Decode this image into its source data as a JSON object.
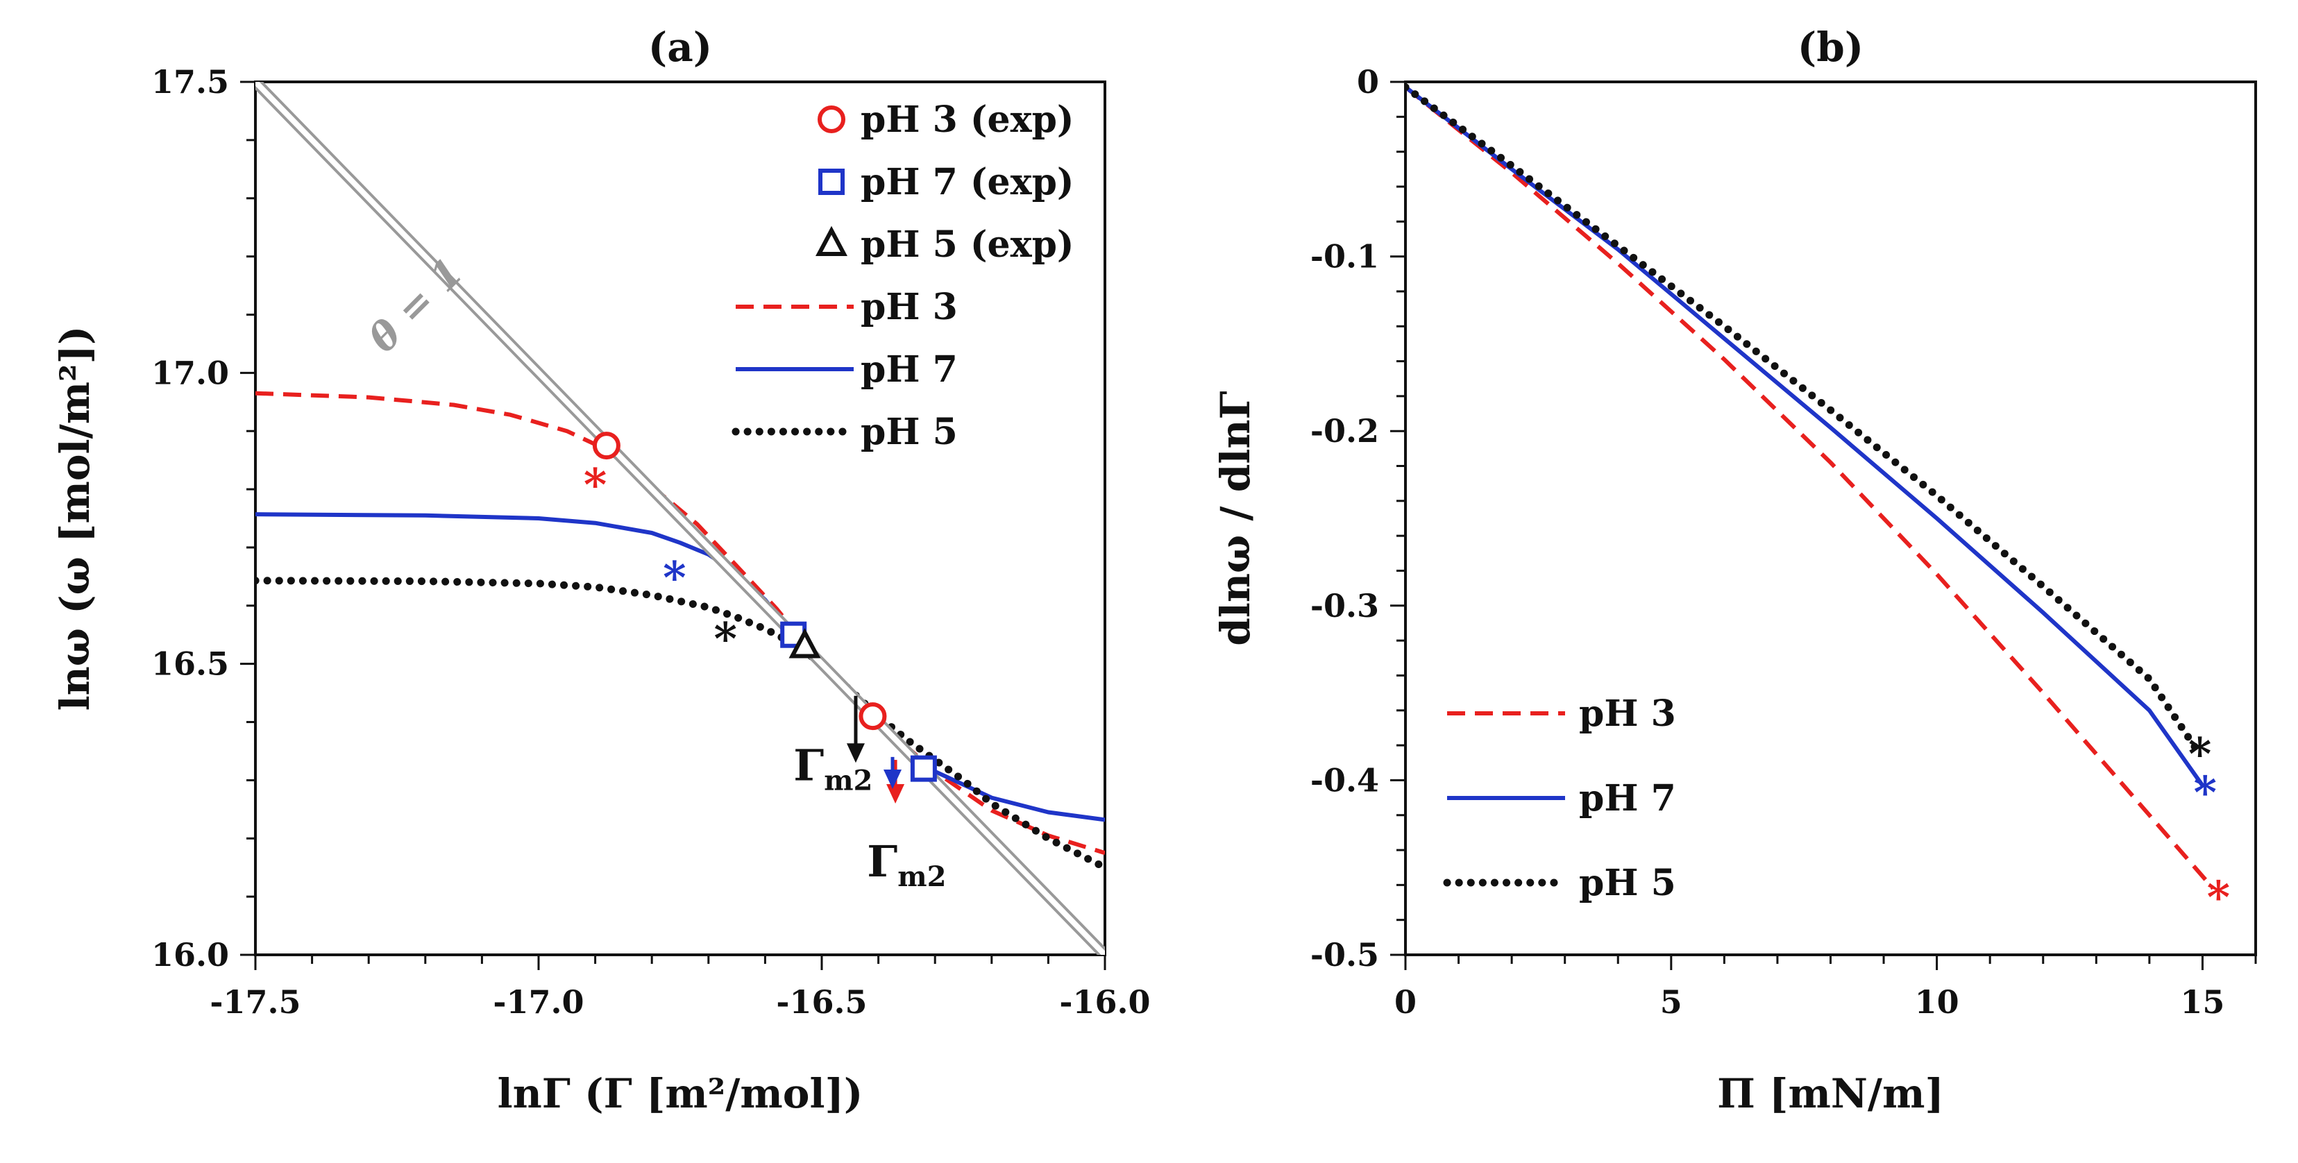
{
  "colors": {
    "pH3": "#e8201e",
    "pH7": "#1f35c8",
    "pH5": "#111111",
    "theta": "#999999",
    "axis": "#111111"
  },
  "chart_data": [
    {
      "id": "a",
      "type": "line",
      "title": "(a)",
      "xlabel": "lnΓ (Γ [m²/mol])",
      "ylabel": "lnω (ω [mol/m²])",
      "xlim": [
        -17.5,
        -16.0
      ],
      "ylim": [
        16.0,
        17.5
      ],
      "xticks": [
        -17.5,
        -17.0,
        -16.5,
        -16.0
      ],
      "xtick_labels": [
        "-17.5",
        "-17.0",
        "-16.5",
        "-16.0"
      ],
      "yticks": [
        16.0,
        16.5,
        17.0,
        17.5
      ],
      "ytick_labels": [
        "16.0",
        "16.5",
        "17.0",
        "17.5"
      ],
      "series": [
        {
          "name": "pH 3",
          "color_key": "pH3",
          "style": "dashed",
          "x": [
            -17.5,
            -17.3,
            -17.15,
            -17.05,
            -16.95,
            -16.88,
            -16.8,
            -16.72,
            -16.65,
            -16.58,
            -16.5,
            -16.45,
            -16.4,
            -16.3,
            -16.2,
            -16.1,
            -16.0
          ],
          "y": [
            16.965,
            16.958,
            16.945,
            16.928,
            16.9,
            16.868,
            16.805,
            16.74,
            16.668,
            16.595,
            16.5,
            16.45,
            16.4,
            16.315,
            16.248,
            16.205,
            16.175
          ]
        },
        {
          "name": "pH 7",
          "color_key": "pH7",
          "style": "solid",
          "x": [
            -17.5,
            -17.2,
            -17.0,
            -16.9,
            -16.8,
            -16.75,
            -16.7,
            -16.65,
            -16.6,
            -16.55,
            -16.5,
            -16.45,
            -16.4,
            -16.35,
            -16.3,
            -16.2,
            -16.1,
            -16.0
          ],
          "y": [
            16.757,
            16.755,
            16.75,
            16.742,
            16.725,
            16.708,
            16.688,
            16.655,
            16.61,
            16.55,
            16.5,
            16.45,
            16.4,
            16.35,
            16.315,
            16.27,
            16.245,
            16.232
          ]
        },
        {
          "name": "pH 5",
          "color_key": "pH5",
          "style": "dotted",
          "x": [
            -17.5,
            -17.2,
            -17.0,
            -16.9,
            -16.8,
            -16.7,
            -16.65,
            -16.6,
            -16.55,
            -16.5,
            -16.45,
            -16.4,
            -16.35,
            -16.3,
            -16.25,
            -16.2,
            -16.1,
            -16.0
          ],
          "y": [
            16.643,
            16.642,
            16.638,
            16.632,
            16.618,
            16.597,
            16.58,
            16.56,
            16.535,
            16.5,
            16.455,
            16.41,
            16.37,
            16.335,
            16.3,
            16.26,
            16.2,
            16.15
          ]
        },
        {
          "name": "θ = 1",
          "color_key": "theta",
          "style": "double",
          "x": [
            -17.5,
            -16.0
          ],
          "y": [
            17.5,
            16.0
          ]
        }
      ],
      "experimental": [
        {
          "name": "pH 3 (exp)",
          "color_key": "pH3",
          "marker": "circle",
          "points": [
            [
              -16.88,
              16.875
            ],
            [
              -16.41,
              16.41
            ]
          ]
        },
        {
          "name": "pH 7 (exp)",
          "color_key": "pH7",
          "marker": "square",
          "points": [
            [
              -16.55,
              16.55
            ],
            [
              -16.32,
              16.32
            ]
          ]
        },
        {
          "name": "pH 5 (exp)",
          "color_key": "pH5",
          "marker": "triangle",
          "points": [
            [
              -16.53,
              16.53
            ]
          ]
        }
      ],
      "star_marks": [
        {
          "color_key": "pH3",
          "x": -16.9,
          "y": 16.82
        },
        {
          "color_key": "pH7",
          "x": -16.76,
          "y": 16.66
        },
        {
          "color_key": "pH5",
          "x": -16.67,
          "y": 16.555
        }
      ],
      "arrows": [
        {
          "color_key": "pH5",
          "x": -16.44,
          "y_from": 16.445,
          "y_to": 16.33
        },
        {
          "color_key": "pH3",
          "x": -16.37,
          "y_from": 16.335,
          "y_to": 16.26
        },
        {
          "color_key": "pH7",
          "x": -16.375,
          "y_from": 16.34,
          "y_to": 16.285
        }
      ],
      "annotations": [
        {
          "text": "θ = 1",
          "x": -17.2,
          "y": 17.1,
          "rotate": -45
        },
        {
          "text": "Γm2",
          "x": -16.55,
          "y": 16.3
        },
        {
          "text": "Γm2",
          "x": -16.42,
          "y": 16.135
        }
      ],
      "legend": {
        "position": "top-right",
        "entries": [
          {
            "label": "pH 3 (exp)",
            "color_key": "pH3",
            "kind": "circle"
          },
          {
            "label": "pH 7 (exp)",
            "color_key": "pH7",
            "kind": "square"
          },
          {
            "label": "pH 5 (exp)",
            "color_key": "pH5",
            "kind": "triangle"
          },
          {
            "label": "pH 3",
            "color_key": "pH3",
            "kind": "dashed"
          },
          {
            "label": "pH 7",
            "color_key": "pH7",
            "kind": "solid"
          },
          {
            "label": "pH 5",
            "color_key": "pH5",
            "kind": "dotted"
          }
        ]
      }
    },
    {
      "id": "b",
      "type": "line",
      "title": "(b)",
      "xlabel": "Π [mN/m]",
      "ylabel": "dlnω / dlnΓ",
      "xlim": [
        0,
        16
      ],
      "ylim": [
        -0.5,
        0
      ],
      "xticks": [
        0,
        5,
        10,
        15
      ],
      "xtick_labels": [
        "0",
        "5",
        "10",
        "15"
      ],
      "yticks": [
        0,
        -0.1,
        -0.2,
        -0.3,
        -0.4,
        -0.5
      ],
      "ytick_labels": [
        "0",
        "-0.1",
        "-0.2",
        "-0.3",
        "-0.4",
        "-0.5"
      ],
      "series": [
        {
          "name": "pH 3",
          "color_key": "pH3",
          "style": "dashed",
          "x": [
            0,
            2,
            4,
            6,
            8,
            10,
            12,
            14,
            15.2
          ],
          "y": [
            -0.003,
            -0.052,
            -0.104,
            -0.159,
            -0.218,
            -0.282,
            -0.35,
            -0.42,
            -0.462
          ]
        },
        {
          "name": "pH 7",
          "color_key": "pH7",
          "style": "solid",
          "x": [
            0,
            2,
            4,
            6,
            8,
            10,
            12,
            14,
            15.0
          ],
          "y": [
            -0.003,
            -0.05,
            -0.096,
            -0.147,
            -0.198,
            -0.25,
            -0.304,
            -0.36,
            -0.403
          ]
        },
        {
          "name": "pH 5",
          "color_key": "pH5",
          "style": "dotted",
          "x": [
            0,
            2,
            4,
            6,
            8,
            10,
            12,
            14,
            14.9
          ],
          "y": [
            -0.003,
            -0.048,
            -0.094,
            -0.14,
            -0.188,
            -0.237,
            -0.289,
            -0.342,
            -0.383
          ]
        }
      ],
      "star_marks": [
        {
          "color_key": "pH3",
          "x": 15.3,
          "y": -0.463
        },
        {
          "color_key": "pH7",
          "x": 15.05,
          "y": -0.403
        },
        {
          "color_key": "pH5",
          "x": 14.95,
          "y": -0.381
        }
      ],
      "legend": {
        "position": "bottom-left",
        "entries": [
          {
            "label": "pH 3",
            "color_key": "pH3",
            "kind": "dashed"
          },
          {
            "label": "pH 7",
            "color_key": "pH7",
            "kind": "solid"
          },
          {
            "label": "pH 5",
            "color_key": "pH5",
            "kind": "dotted"
          }
        ]
      }
    }
  ]
}
